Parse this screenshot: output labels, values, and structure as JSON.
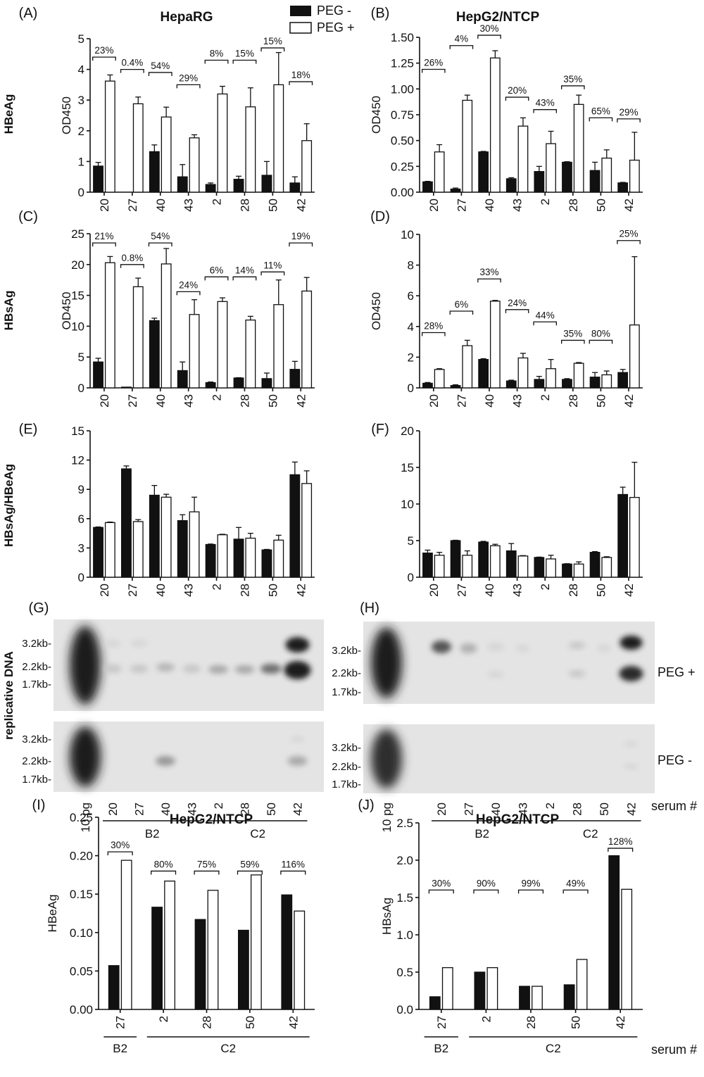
{
  "figure": {
    "legend": {
      "neg": "PEG -",
      "pos": "PEG +"
    },
    "column_titles": {
      "left": "HepaRG",
      "right": "HepG2/NTCP"
    },
    "row_labels": {
      "hbeag": "HBeAg",
      "hbsag": "HBsAg",
      "ratio": "HBsAg/HBeAg",
      "dna": "replicative DNA"
    },
    "serum_label": "serum #",
    "panel_g": {
      "letter": "(G)",
      "markers": [
        "3.2kb-",
        "2.2kb-",
        "1.7kb-"
      ],
      "lanes": [
        "10 pg",
        "20",
        "27",
        "40",
        "43",
        "2",
        "28",
        "50",
        "42"
      ],
      "groups": [
        {
          "label": "B2"
        },
        {
          "label": "C2"
        }
      ]
    },
    "panel_h": {
      "letter": "(H)",
      "markers": [
        "3.2kb-",
        "2.2kb-",
        "1.7kb-"
      ],
      "lanes": [
        "10 pg",
        "20",
        "27",
        "40",
        "43",
        "2",
        "28",
        "50",
        "42"
      ],
      "groups": [
        {
          "label": "B2"
        },
        {
          "label": "C2"
        }
      ],
      "blot_labels": [
        "PEG +",
        "PEG -"
      ]
    },
    "colors": {
      "neg": "#111111",
      "pos": "#ffffff",
      "axis": "#111111"
    }
  },
  "chart_data": [
    {
      "id": "A",
      "letter": "(A)",
      "type": "bar",
      "title": "HepaRG",
      "ylabel": "OD450",
      "ylim": [
        0,
        5
      ],
      "yticks": [
        "0",
        "1",
        "2",
        "3",
        "4",
        "5"
      ],
      "categories": [
        "20",
        "27",
        "40",
        "43",
        "2",
        "28",
        "50",
        "42"
      ],
      "series": [
        {
          "name": "PEG -",
          "values": [
            0.85,
            0.0,
            1.32,
            0.5,
            0.25,
            0.42,
            0.55,
            0.3
          ],
          "errors": [
            0.12,
            0,
            0.22,
            0.4,
            0.05,
            0.1,
            0.45,
            0.2
          ]
        },
        {
          "name": "PEG +",
          "values": [
            3.62,
            2.88,
            2.45,
            1.77,
            3.2,
            2.78,
            3.5,
            1.68
          ],
          "errors": [
            0.2,
            0.22,
            0.32,
            0.1,
            0.25,
            0.62,
            1.05,
            0.55
          ]
        }
      ],
      "annotations": [
        "23%",
        "0.4%",
        "54%",
        "29%",
        "8%",
        "15%",
        "15%",
        "18%"
      ],
      "annot_y": [
        4.4,
        4.0,
        3.9,
        3.5,
        4.3,
        4.3,
        4.7,
        3.6
      ]
    },
    {
      "id": "B",
      "letter": "(B)",
      "type": "bar",
      "title": "HepG2/NTCP",
      "ylabel": "OD450",
      "ylim": [
        0,
        1.5
      ],
      "yticks": [
        "0.00",
        "0.25",
        "0.50",
        "0.75",
        "1.00",
        "1.25",
        "1.50"
      ],
      "categories": [
        "20",
        "27",
        "40",
        "43",
        "2",
        "28",
        "50",
        "42"
      ],
      "series": [
        {
          "name": "PEG -",
          "values": [
            0.1,
            0.03,
            0.39,
            0.13,
            0.2,
            0.29,
            0.21,
            0.09
          ],
          "errors": [
            0.005,
            0.01,
            0.005,
            0.01,
            0.05,
            0.005,
            0.08,
            0.005
          ]
        },
        {
          "name": "PEG +",
          "values": [
            0.39,
            0.89,
            1.3,
            0.64,
            0.47,
            0.85,
            0.33,
            0.31
          ],
          "errors": [
            0.07,
            0.05,
            0.07,
            0.08,
            0.12,
            0.09,
            0.08,
            0.27
          ]
        }
      ],
      "annotations": [
        "26%",
        "4%",
        "30%",
        "20%",
        "43%",
        "35%",
        "65%",
        "29%"
      ],
      "annot_y": [
        1.19,
        1.42,
        1.52,
        0.92,
        0.8,
        1.03,
        0.72,
        0.71
      ]
    },
    {
      "id": "C",
      "letter": "(C)",
      "type": "bar",
      "title": "",
      "ylabel": "OD450",
      "ylim": [
        0,
        25
      ],
      "yticks": [
        "0",
        "5",
        "10",
        "15",
        "20",
        "25"
      ],
      "categories": [
        "20",
        "27",
        "40",
        "43",
        "2",
        "28",
        "50",
        "42"
      ],
      "series": [
        {
          "name": "PEG -",
          "values": [
            4.2,
            0.12,
            10.9,
            2.8,
            0.85,
            1.6,
            1.5,
            3.0
          ],
          "errors": [
            0.6,
            0,
            0.4,
            1.4,
            0.1,
            0.05,
            0.9,
            1.3
          ]
        },
        {
          "name": "PEG +",
          "values": [
            20.3,
            16.4,
            20.1,
            11.9,
            14.0,
            11.0,
            13.5,
            15.7
          ],
          "errors": [
            1.0,
            1.4,
            2.5,
            2.4,
            0.6,
            0.6,
            4.0,
            2.2
          ]
        }
      ],
      "annotations": [
        "21%",
        "0.8%",
        "54%",
        "24%",
        "6%",
        "14%",
        "11%",
        "19%"
      ],
      "annot_y": [
        23.5,
        20.0,
        23.5,
        15.6,
        18.0,
        18.0,
        18.8,
        23.5
      ]
    },
    {
      "id": "D",
      "letter": "(D)",
      "type": "bar",
      "title": "",
      "ylabel": "OD450",
      "ylim": [
        0,
        10
      ],
      "yticks": [
        "0",
        "2",
        "4",
        "6",
        "8",
        "10"
      ],
      "categories": [
        "20",
        "27",
        "40",
        "43",
        "2",
        "28",
        "50",
        "42"
      ],
      "series": [
        {
          "name": "PEG -",
          "values": [
            0.3,
            0.15,
            1.85,
            0.45,
            0.55,
            0.55,
            0.7,
            1.0
          ],
          "errors": [
            0.05,
            0.05,
            0.05,
            0.05,
            0.2,
            0.05,
            0.3,
            0.2
          ]
        },
        {
          "name": "PEG +",
          "values": [
            1.2,
            2.75,
            5.65,
            1.95,
            1.25,
            1.6,
            0.85,
            4.1
          ],
          "errors": [
            0.05,
            0.35,
            0.05,
            0.3,
            0.6,
            0.05,
            0.25,
            4.45
          ]
        }
      ],
      "annotations": [
        "28%",
        "6%",
        "33%",
        "24%",
        "44%",
        "35%",
        "80%",
        "25%"
      ],
      "annot_y": [
        3.6,
        5.0,
        7.1,
        5.1,
        4.3,
        3.1,
        3.1,
        9.6
      ]
    },
    {
      "id": "E",
      "letter": "(E)",
      "type": "bar",
      "title": "",
      "ylabel": "",
      "ylim": [
        0,
        15
      ],
      "yticks": [
        "0",
        "3",
        "6",
        "9",
        "12",
        "15"
      ],
      "categories": [
        "20",
        "27",
        "40",
        "43",
        "2",
        "28",
        "50",
        "42"
      ],
      "series": [
        {
          "name": "PEG -",
          "values": [
            5.1,
            11.1,
            8.4,
            5.8,
            3.35,
            3.9,
            2.8,
            10.5
          ],
          "errors": [
            0.05,
            0.3,
            1.0,
            0.6,
            0.05,
            1.2,
            0.05,
            1.3
          ]
        },
        {
          "name": "PEG +",
          "values": [
            5.6,
            5.7,
            8.2,
            6.7,
            4.35,
            4.0,
            3.8,
            9.6
          ],
          "errors": [
            0.05,
            0.2,
            0.3,
            1.5,
            0.05,
            0.5,
            0.5,
            1.3
          ]
        }
      ],
      "annotations": [],
      "annot_y": []
    },
    {
      "id": "F",
      "letter": "(F)",
      "type": "bar",
      "title": "",
      "ylabel": "",
      "ylim": [
        0,
        20
      ],
      "yticks": [
        "0",
        "5",
        "10",
        "15",
        "20"
      ],
      "categories": [
        "20",
        "27",
        "40",
        "43",
        "2",
        "28",
        "50",
        "42"
      ],
      "series": [
        {
          "name": "PEG -",
          "values": [
            3.3,
            5.0,
            4.8,
            3.6,
            2.7,
            1.8,
            3.4,
            11.3
          ],
          "errors": [
            0.4,
            0.05,
            0.1,
            1.0,
            0.05,
            0.05,
            0.1,
            1.0
          ]
        },
        {
          "name": "PEG +",
          "values": [
            3.0,
            3.0,
            4.3,
            2.9,
            2.5,
            1.8,
            2.7,
            10.9
          ],
          "errors": [
            0.4,
            0.6,
            0.2,
            0.05,
            0.5,
            0.3,
            0.1,
            4.8
          ]
        }
      ],
      "annotations": [],
      "annot_y": []
    },
    {
      "id": "I",
      "letter": "(I)",
      "type": "bar",
      "title": "HepG2/NTCP",
      "ylabel": "HBeAg",
      "ylim": [
        0,
        0.25
      ],
      "yticks": [
        "0.00",
        "0.05",
        "0.10",
        "0.15",
        "0.20",
        "0.25"
      ],
      "categories": [
        "27",
        "2",
        "28",
        "50",
        "42"
      ],
      "groups": [
        {
          "label": "B2",
          "from": 0,
          "to": 0
        },
        {
          "label": "C2",
          "from": 1,
          "to": 4
        }
      ],
      "series": [
        {
          "name": "PEG -",
          "values": [
            0.057,
            0.133,
            0.117,
            0.103,
            0.149
          ]
        },
        {
          "name": "PEG +",
          "values": [
            0.194,
            0.167,
            0.155,
            0.175,
            0.128
          ]
        }
      ],
      "annotations": [
        "30%",
        "80%",
        "75%",
        "59%",
        "116%"
      ],
      "annot_y": [
        0.205,
        0.18,
        0.18,
        0.18,
        0.18
      ]
    },
    {
      "id": "J",
      "letter": "(J)",
      "type": "bar",
      "title": "HepG2/NTCP",
      "ylabel": "HBsAg",
      "ylim": [
        0,
        2.5
      ],
      "yticks": [
        "0.0",
        "0.5",
        "1.0",
        "1.5",
        "2.0",
        "2.5"
      ],
      "categories": [
        "27",
        "2",
        "28",
        "50",
        "42"
      ],
      "groups": [
        {
          "label": "B2",
          "from": 0,
          "to": 0
        },
        {
          "label": "C2",
          "from": 1,
          "to": 4
        }
      ],
      "series": [
        {
          "name": "PEG -",
          "values": [
            0.17,
            0.5,
            0.31,
            0.33,
            2.06
          ]
        },
        {
          "name": "PEG +",
          "values": [
            0.56,
            0.56,
            0.31,
            0.67,
            1.61
          ]
        }
      ],
      "annotations": [
        "30%",
        "90%",
        "99%",
        "49%",
        "128%"
      ],
      "annot_y": [
        1.6,
        1.6,
        1.6,
        1.6,
        2.16
      ]
    }
  ]
}
